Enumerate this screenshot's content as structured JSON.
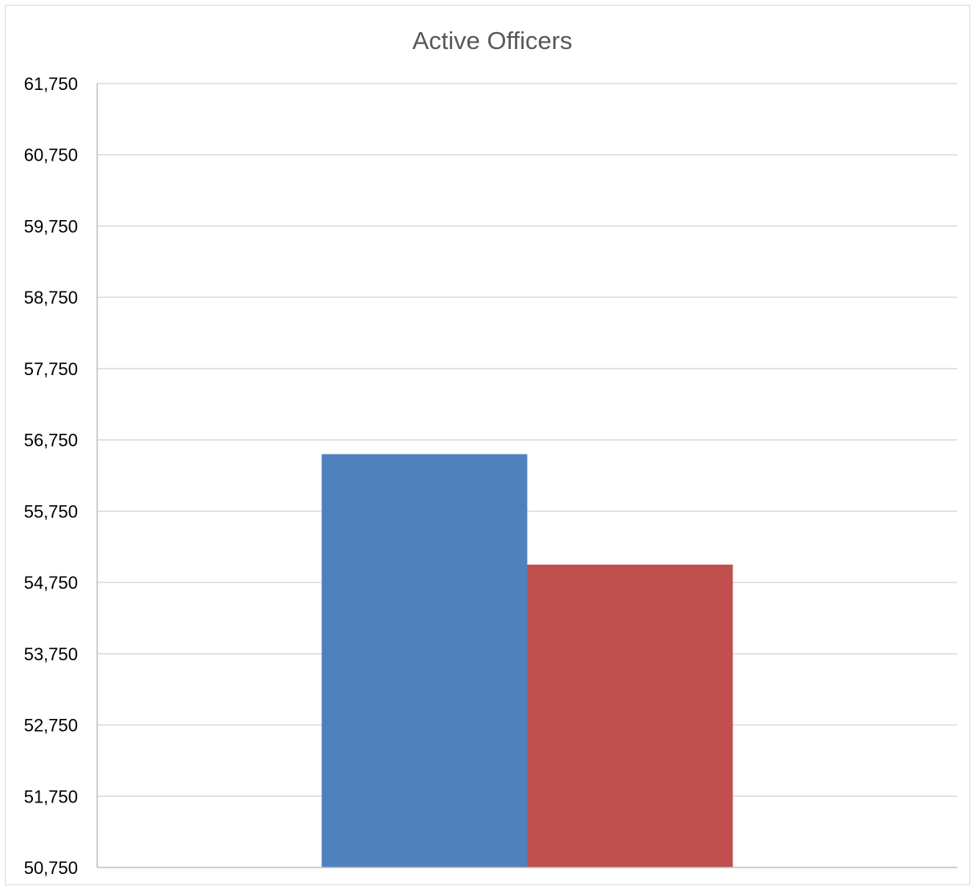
{
  "chart_data": {
    "type": "bar",
    "title": "Active Officers",
    "xlabel": "",
    "ylabel": "",
    "categories": [
      ""
    ],
    "series": [
      {
        "values": [
          56550
        ],
        "color": "#4f81bd"
      },
      {
        "values": [
          55000
        ],
        "color": "#c0504d"
      }
    ],
    "ylim": [
      50750,
      61750
    ],
    "yticks": [
      50750,
      51750,
      52750,
      53750,
      54750,
      55750,
      56750,
      57750,
      58750,
      59750,
      60750,
      61750
    ],
    "ytick_labels": [
      "50,750",
      "51,750",
      "52,750",
      "53,750",
      "54,750",
      "55,750",
      "56,750",
      "57,750",
      "58,750",
      "59,750",
      "60,750",
      "61,750"
    ],
    "grid": true,
    "legend": "none",
    "colors": {
      "gridline": "#d9d9d9",
      "axis": "#bfbfbf",
      "title": "#595959"
    }
  }
}
